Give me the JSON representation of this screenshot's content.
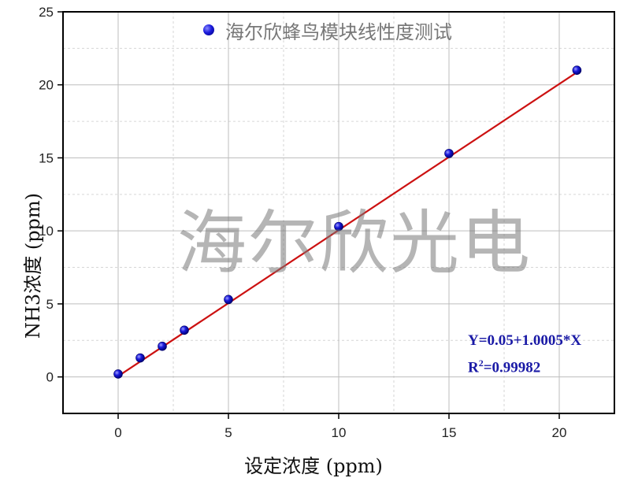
{
  "chart_data": {
    "type": "scatter",
    "title": "",
    "xlabel": "设定浓度 (ppm)",
    "ylabel": "NH3浓度 (ppm)",
    "xlim": [
      -2.5,
      22.5
    ],
    "ylim": [
      -2.5,
      25
    ],
    "xticks": [
      0,
      5,
      10,
      15,
      20
    ],
    "yticks": [
      0,
      5,
      10,
      15,
      20,
      25
    ],
    "grid": true,
    "legend_position": "top",
    "series": [
      {
        "name": "海尔欣蜂鸟模块线性度测试",
        "color": "#1a1adc",
        "x": [
          0,
          1,
          2,
          3,
          5,
          10,
          15,
          20.8
        ],
        "y": [
          0.2,
          1.3,
          2.1,
          3.2,
          5.3,
          10.3,
          15.3,
          21.0
        ]
      }
    ],
    "fit_line": {
      "intercept": 0.05,
      "slope": 1.0005,
      "x_range": [
        0,
        20.8
      ],
      "color": "#cc1111"
    },
    "annotation": {
      "equation": "Y=0.05+1.0005*X",
      "r2_prefix": "R",
      "r2_sup": "2",
      "r2_value": "=0.99982"
    },
    "watermark": "海尔欣光电"
  }
}
